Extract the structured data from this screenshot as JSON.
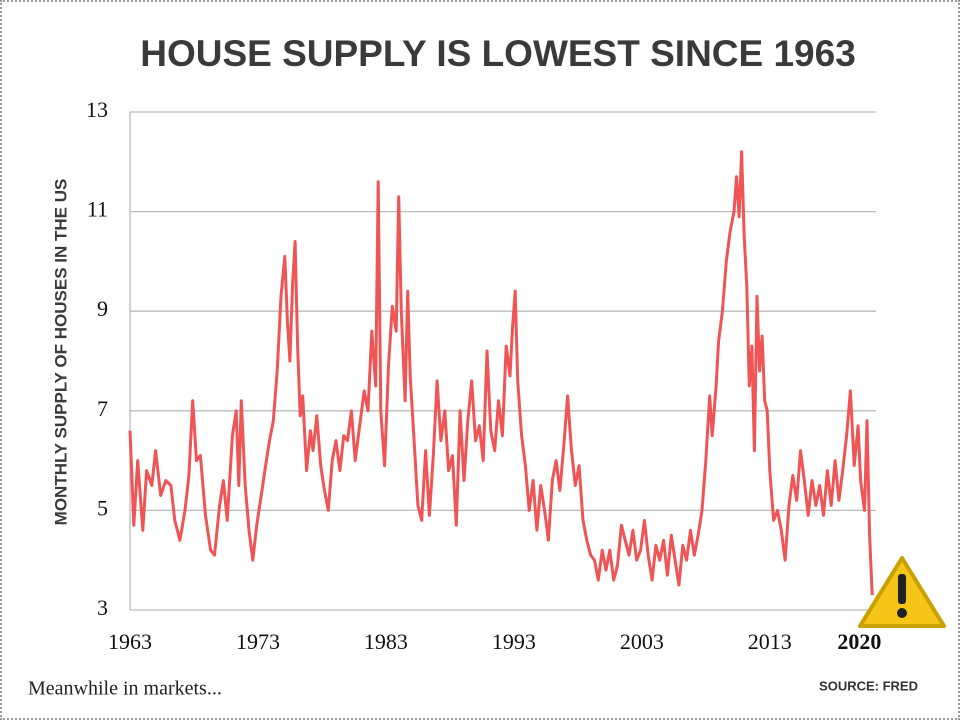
{
  "chart_data": {
    "type": "line",
    "title": "HOUSE SUPPLY IS LOWEST SINCE 1963",
    "y_label": "MONTHLY SUPPLY OF HOUSES IN THE US",
    "brand": "Meanwhile in markets...",
    "source": "SOURCE:  FRED",
    "color": "#f05555",
    "grid": true,
    "xlim": [
      1963,
      2021.3
    ],
    "xticks": [
      1963,
      1973,
      1983,
      1993,
      2003,
      2013,
      2020
    ],
    "ylim": [
      3,
      13
    ],
    "yticks": [
      3,
      5,
      7,
      9,
      11,
      13
    ],
    "x": [
      1963,
      1963.3,
      1963.6,
      1964,
      1964.3,
      1964.7,
      1965,
      1965.4,
      1965.8,
      1966.2,
      1966.5,
      1966.9,
      1967.3,
      1967.6,
      1967.9,
      1968.2,
      1968.5,
      1968.9,
      1969.3,
      1969.6,
      1970,
      1970.3,
      1970.6,
      1971,
      1971.3,
      1971.5,
      1971.7,
      1972,
      1972.3,
      1972.6,
      1972.9,
      1973.2,
      1973.6,
      1973.9,
      1974.2,
      1974.5,
      1974.8,
      1975.1,
      1975.3,
      1975.5,
      1975.7,
      1975.9,
      1976.1,
      1976.3,
      1976.5,
      1976.8,
      1977.1,
      1977.3,
      1977.6,
      1977.9,
      1978.2,
      1978.5,
      1978.8,
      1979.1,
      1979.4,
      1979.7,
      1980,
      1980.3,
      1980.6,
      1981,
      1981.3,
      1981.6,
      1981.9,
      1982.2,
      1982.4,
      1982.6,
      1982.9,
      1983.2,
      1983.5,
      1983.8,
      1984,
      1984.2,
      1984.5,
      1984.7,
      1984.9,
      1985.2,
      1985.5,
      1985.8,
      1986.1,
      1986.4,
      1986.7,
      1987,
      1987.3,
      1987.6,
      1987.9,
      1988.2,
      1988.5,
      1988.8,
      1989.1,
      1989.4,
      1989.7,
      1990,
      1990.3,
      1990.6,
      1990.9,
      1991.2,
      1991.5,
      1991.8,
      1992.1,
      1992.4,
      1992.7,
      1992.9,
      1993.1,
      1993.3,
      1993.6,
      1993.9,
      1994.2,
      1994.5,
      1994.8,
      1995.1,
      1995.4,
      1995.7,
      1996,
      1996.3,
      1996.6,
      1996.9,
      1997.2,
      1997.5,
      1997.8,
      1998.1,
      1998.4,
      1998.7,
      1999,
      1999.3,
      1999.6,
      1999.9,
      2000.2,
      2000.5,
      2000.8,
      2001.1,
      2001.4,
      2001.7,
      2002,
      2002.3,
      2002.6,
      2002.9,
      2003.2,
      2003.5,
      2003.8,
      2004.1,
      2004.4,
      2004.7,
      2005,
      2005.3,
      2005.6,
      2005.9,
      2006.2,
      2006.5,
      2006.8,
      2007.1,
      2007.4,
      2007.7,
      2008,
      2008.3,
      2008.5,
      2008.8,
      2009,
      2009.3,
      2009.6,
      2009.9,
      2010.2,
      2010.4,
      2010.6,
      2010.8,
      2011,
      2011.2,
      2011.4,
      2011.6,
      2011.8,
      2012,
      2012.2,
      2012.4,
      2012.6,
      2012.8,
      2013,
      2013.3,
      2013.6,
      2013.9,
      2014.2,
      2014.5,
      2014.8,
      2015.1,
      2015.4,
      2015.7,
      2016,
      2016.3,
      2016.6,
      2016.9,
      2017.2,
      2017.5,
      2017.8,
      2018.1,
      2018.4,
      2018.7,
      2019,
      2019.3,
      2019.6,
      2019.9,
      2020.1,
      2020.4,
      2020.6,
      2020.8,
      2021
    ],
    "values": [
      6.6,
      4.7,
      6.0,
      4.6,
      5.8,
      5.5,
      6.2,
      5.3,
      5.6,
      5.5,
      4.8,
      4.4,
      5.0,
      5.7,
      7.2,
      6.0,
      6.1,
      4.9,
      4.2,
      4.1,
      5.1,
      5.6,
      4.8,
      6.5,
      7.0,
      5.5,
      7.2,
      5.5,
      4.6,
      4.0,
      4.7,
      5.2,
      5.9,
      6.4,
      6.8,
      7.8,
      9.3,
      10.1,
      8.8,
      8.0,
      9.5,
      10.4,
      8.3,
      6.9,
      7.3,
      5.8,
      6.6,
      6.2,
      6.9,
      5.9,
      5.4,
      5.0,
      6.0,
      6.4,
      5.8,
      6.5,
      6.4,
      7.0,
      6.0,
      6.8,
      7.4,
      7.0,
      8.6,
      7.5,
      11.6,
      7.0,
      5.9,
      7.9,
      9.1,
      8.6,
      11.3,
      9.0,
      7.2,
      9.4,
      7.7,
      6.4,
      5.1,
      4.8,
      6.2,
      4.9,
      6.1,
      7.6,
      6.4,
      7.0,
      5.8,
      6.1,
      4.7,
      7.0,
      5.6,
      6.8,
      7.6,
      6.4,
      6.7,
      6.0,
      8.2,
      6.6,
      6.2,
      7.2,
      6.5,
      8.3,
      7.7,
      8.7,
      9.4,
      7.6,
      6.5,
      5.9,
      5.0,
      5.6,
      4.6,
      5.5,
      5.0,
      4.4,
      5.6,
      6.0,
      5.4,
      6.3,
      7.3,
      6.2,
      5.5,
      5.9,
      4.8,
      4.4,
      4.1,
      4.0,
      3.6,
      4.2,
      3.8,
      4.2,
      3.6,
      3.9,
      4.7,
      4.4,
      4.1,
      4.6,
      4.0,
      4.2,
      4.8,
      4.1,
      3.6,
      4.3,
      4.0,
      4.4,
      3.7,
      4.5,
      4.0,
      3.5,
      4.3,
      4.0,
      4.6,
      4.1,
      4.5,
      5.0,
      6.0,
      7.3,
      6.5,
      7.5,
      8.4,
      9.0,
      10.0,
      10.6,
      11.0,
      11.7,
      10.9,
      12.2,
      10.5,
      9.5,
      7.5,
      8.3,
      6.2,
      9.3,
      7.8,
      8.5,
      7.2,
      7.0,
      5.8,
      4.8,
      5.0,
      4.6,
      4.0,
      5.1,
      5.7,
      5.2,
      6.2,
      5.6,
      4.9,
      5.6,
      5.1,
      5.5,
      4.9,
      5.8,
      5.1,
      6.0,
      5.2,
      5.8,
      6.5,
      7.4,
      5.9,
      6.7,
      5.6,
      5.0,
      6.8,
      4.5,
      3.3
    ]
  }
}
